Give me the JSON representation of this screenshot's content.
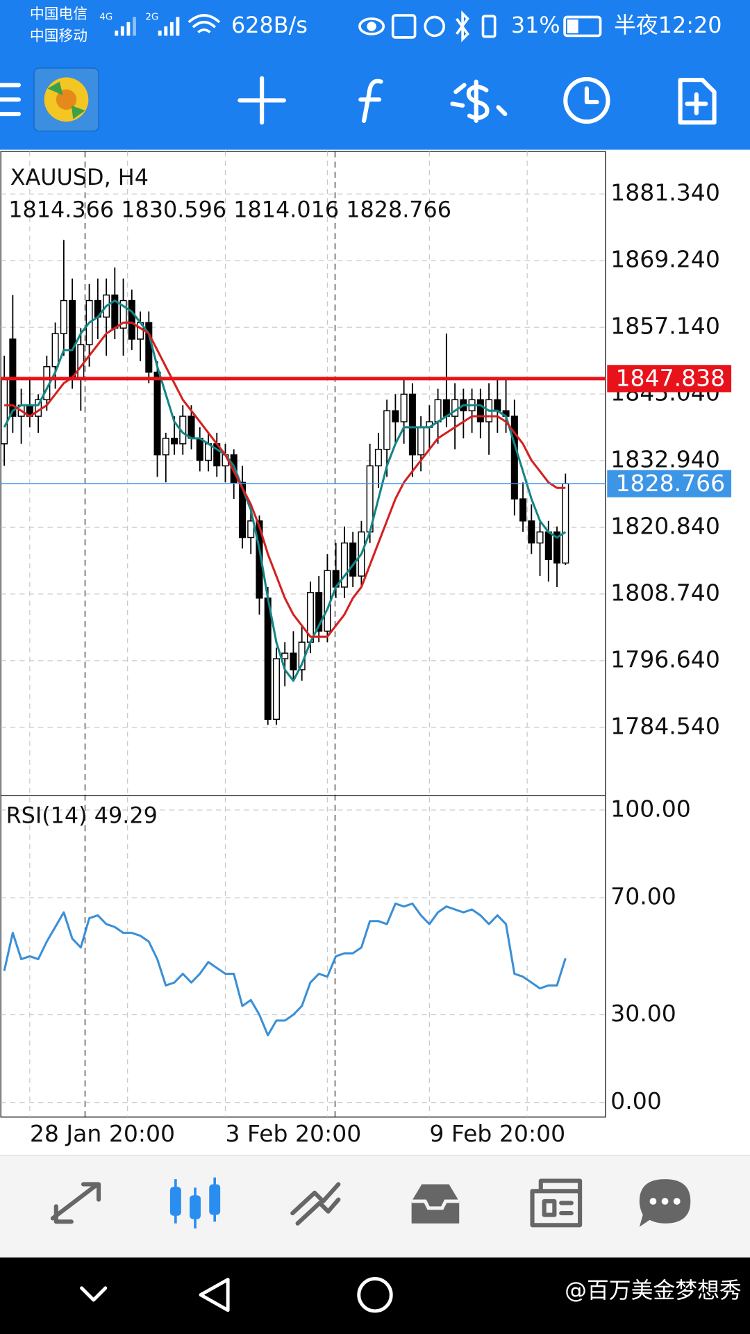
{
  "status_bar": {
    "carrier_1": "中国电信",
    "carrier_2": "中国移动",
    "net_1": "4G",
    "net_2": "2G",
    "speed": "628B/s",
    "battery": "31%",
    "time": "半夜12:20"
  },
  "watermark": "@百万美金梦想秀",
  "chart_data": [
    {
      "type": "candlestick",
      "title": "XAUUSD, H4",
      "subtitle": "1814.366 1830.596 1814.016 1828.766",
      "categories": [
        null,
        null,
        null,
        "28 Jan 20:00",
        null,
        null,
        null,
        null,
        null,
        null,
        null,
        null,
        null,
        null,
        null,
        null,
        null,
        null,
        null,
        null,
        null,
        null,
        null,
        null,
        null,
        null,
        "3 Feb 20:00",
        null,
        null,
        null,
        null,
        null,
        null,
        null,
        null,
        null,
        null,
        null,
        null,
        null,
        null,
        null,
        null,
        null,
        null,
        null,
        null,
        null,
        null,
        null,
        "9 Feb 20:00",
        null,
        null,
        null,
        null,
        null,
        null,
        null,
        null,
        null,
        null,
        null,
        null,
        null,
        null,
        null,
        null
      ],
      "ohlc": [
        [
          1836,
          1852,
          1832,
          1848
        ],
        [
          1855,
          1863,
          1838,
          1841
        ],
        [
          1841,
          1846,
          1836,
          1843
        ],
        [
          1843,
          1848,
          1839,
          1841
        ],
        [
          1841,
          1845,
          1838,
          1844
        ],
        [
          1844,
          1852,
          1842,
          1850
        ],
        [
          1850,
          1858,
          1846,
          1856
        ],
        [
          1856,
          1873,
          1852,
          1862
        ],
        [
          1862,
          1866,
          1846,
          1848
        ],
        [
          1848,
          1857,
          1842,
          1854
        ],
        [
          1854,
          1865,
          1850,
          1862
        ],
        [
          1862,
          1866,
          1855,
          1859
        ],
        [
          1859,
          1866,
          1852,
          1863
        ],
        [
          1863,
          1868,
          1855,
          1857
        ],
        [
          1857,
          1866,
          1852,
          1862
        ],
        [
          1862,
          1864,
          1853,
          1855
        ],
        [
          1855,
          1860,
          1851,
          1858
        ],
        [
          1858,
          1860,
          1847,
          1849
        ],
        [
          1849,
          1851,
          1830,
          1834
        ],
        [
          1834,
          1838,
          1829,
          1837
        ],
        [
          1837,
          1841,
          1834,
          1836
        ],
        [
          1836,
          1843,
          1834,
          1841
        ],
        [
          1841,
          1843,
          1835,
          1837
        ],
        [
          1837,
          1839,
          1831,
          1833
        ],
        [
          1833,
          1838,
          1831,
          1836
        ],
        [
          1836,
          1838,
          1830,
          1832
        ],
        [
          1832,
          1836,
          1829,
          1834
        ],
        [
          1834,
          1835,
          1826,
          1829
        ],
        [
          1829,
          1832,
          1817,
          1819
        ],
        [
          1819,
          1824,
          1816,
          1822
        ],
        [
          1822,
          1823,
          1805,
          1808
        ],
        [
          1808,
          1810,
          1785,
          1786
        ],
        [
          1786,
          1799,
          1785,
          1797
        ],
        [
          1797,
          1800,
          1792,
          1798
        ],
        [
          1798,
          1802,
          1793,
          1795
        ],
        [
          1795,
          1803,
          1793,
          1800
        ],
        [
          1800,
          1811,
          1798,
          1809
        ],
        [
          1809,
          1812,
          1800,
          1802
        ],
        [
          1802,
          1816,
          1800,
          1813
        ],
        [
          1813,
          1818,
          1808,
          1810
        ],
        [
          1810,
          1821,
          1808,
          1818
        ],
        [
          1818,
          1820,
          1810,
          1812
        ],
        [
          1812,
          1822,
          1810,
          1820
        ],
        [
          1820,
          1836,
          1818,
          1832
        ],
        [
          1832,
          1838,
          1828,
          1835
        ],
        [
          1835,
          1844,
          1830,
          1842
        ],
        [
          1842,
          1845,
          1836,
          1840
        ],
        [
          1840,
          1848,
          1836,
          1845
        ],
        [
          1845,
          1847,
          1830,
          1834
        ],
        [
          1834,
          1841,
          1831,
          1839
        ],
        [
          1839,
          1843,
          1835,
          1840
        ],
        [
          1840,
          1846,
          1836,
          1844
        ],
        [
          1844,
          1856,
          1839,
          1841
        ],
        [
          1841,
          1847,
          1835,
          1844
        ],
        [
          1844,
          1846,
          1837,
          1842
        ],
        [
          1842,
          1846,
          1838,
          1844
        ],
        [
          1844,
          1846,
          1837,
          1840
        ],
        [
          1840,
          1847,
          1834,
          1844
        ],
        [
          1844,
          1848,
          1838,
          1842
        ],
        [
          1842,
          1848,
          1838,
          1841
        ],
        [
          1841,
          1844,
          1823,
          1826
        ],
        [
          1826,
          1829,
          1820,
          1822
        ],
        [
          1822,
          1825,
          1816,
          1818
        ],
        [
          1818,
          1822,
          1812,
          1820
        ],
        [
          1820,
          1822,
          1811,
          1815
        ],
        [
          1820,
          1821,
          1810,
          1814.366
        ],
        [
          1814.366,
          1830.596,
          1814.016,
          1828.766
        ]
      ],
      "up_color": "#ffffff",
      "down_color": "#000000",
      "series": [
        {
          "color": "#138585",
          "values": [
            1839,
            1842,
            1843,
            1843,
            1843,
            1846,
            1849,
            1853,
            1853,
            1856,
            1858,
            1859,
            1861,
            1862,
            1861,
            1860,
            1858,
            1856,
            1850,
            1845,
            1840,
            1838,
            1837,
            1837,
            1836,
            1835,
            1834,
            1832,
            1828,
            1824,
            1817,
            1808,
            1800,
            1795,
            1793,
            1796,
            1800,
            1803,
            1806,
            1810,
            1812,
            1814,
            1816,
            1820,
            1826,
            1832,
            1836,
            1839,
            1839,
            1839,
            1839,
            1840,
            1841,
            1842,
            1843,
            1843,
            1843,
            1842,
            1842,
            1841,
            1836,
            1831,
            1826,
            1822,
            1820,
            1819,
            1820
          ]
        },
        {
          "color": "#d42020",
          "values": [
            1843,
            1843,
            1842,
            1841,
            1842,
            1843,
            1845,
            1847,
            1848,
            1850,
            1852,
            1854,
            1856,
            1857,
            1858,
            1858,
            1857,
            1856,
            1853,
            1850,
            1847,
            1844,
            1842,
            1840,
            1838,
            1836,
            1834,
            1831,
            1828,
            1825,
            1821,
            1816,
            1812,
            1808,
            1805,
            1803,
            1801,
            1801,
            1801,
            1803,
            1805,
            1808,
            1810,
            1814,
            1818,
            1822,
            1826,
            1829,
            1831,
            1833,
            1835,
            1837,
            1838,
            1839,
            1840,
            1841,
            1841,
            1841,
            1841,
            1840,
            1838,
            1836,
            1833,
            1831,
            1829,
            1828,
            1828
          ]
        }
      ],
      "hlines": [
        {
          "value": 1847.838,
          "label": "1847.838",
          "color": "#e8121b"
        },
        {
          "value": 1828.766,
          "label": "1828.766",
          "color": "#3d95e6"
        }
      ],
      "ylim": [
        1772.18,
        1888.75
      ],
      "yticks": [
        {
          "value": 1881.34,
          "label": "1881.340"
        },
        {
          "value": 1869.24,
          "label": "1869.240"
        },
        {
          "value": 1857.14,
          "label": "1857.140"
        },
        {
          "value": 1845.04,
          "label": "1845.040"
        },
        {
          "value": 1832.94,
          "label": "1832.940"
        },
        {
          "value": 1820.84,
          "label": "1820.840"
        },
        {
          "value": 1808.74,
          "label": "1808.740"
        },
        {
          "value": 1796.64,
          "label": "1796.640"
        },
        {
          "value": 1784.54,
          "label": "1784.540"
        }
      ],
      "grid": true
    },
    {
      "type": "line",
      "title": "RSI(14) 49.29",
      "series": [
        {
          "color": "#3a8fd6",
          "values": [
            45,
            58,
            49,
            50,
            49,
            55,
            60,
            65,
            56,
            53,
            63,
            64,
            61,
            60,
            58,
            58,
            57,
            55,
            49,
            40,
            41,
            44,
            41,
            44,
            48,
            46,
            44,
            44,
            33,
            35,
            30,
            23,
            28,
            28,
            30,
            33,
            41,
            44,
            43,
            50,
            51,
            51,
            53,
            62,
            62,
            61,
            68,
            67,
            68,
            64,
            61,
            65,
            67,
            66,
            65,
            66,
            64,
            61,
            64,
            61,
            44,
            43,
            41,
            39,
            40,
            40,
            49.29
          ]
        }
      ],
      "ylim": [
        -5,
        104.4
      ],
      "yticks": [
        {
          "value": 100,
          "label": "100.00"
        },
        {
          "value": 70,
          "label": "70.00"
        },
        {
          "value": 30,
          "label": "30.00"
        },
        {
          "value": 0,
          "label": "0.00"
        }
      ],
      "grid": true
    }
  ]
}
